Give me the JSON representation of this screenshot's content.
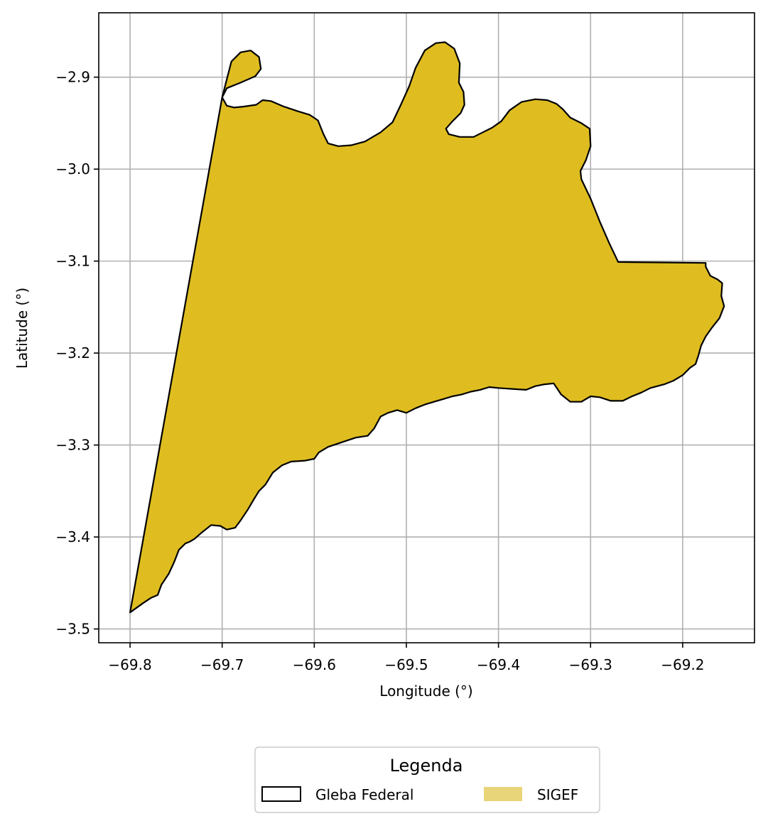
{
  "map": {
    "xlabel": "Longitude (°)",
    "ylabel": "Latitude (°)",
    "xlim": [
      -69.834,
      -69.122
    ],
    "ylim": [
      -3.515,
      -2.83
    ],
    "x_ticks": [
      -69.8,
      -69.7,
      -69.6,
      -69.5,
      -69.4,
      -69.3,
      -69.2
    ],
    "y_ticks": [
      -2.9,
      -3.0,
      -3.1,
      -3.2,
      -3.3,
      -3.4,
      -3.5
    ],
    "x_tick_labels": [
      "−69.8",
      "−69.7",
      "−69.6",
      "−69.5",
      "−69.4",
      "−69.3",
      "−69.2"
    ],
    "y_tick_labels": [
      "−2.9",
      "−3.0",
      "−3.1",
      "−3.2",
      "−3.3",
      "−3.4",
      "−3.5"
    ],
    "grid": true,
    "colors": {
      "sigef_fill": "#dfbd20",
      "gleba_edge": "#000000",
      "grid": "#b0b0b0",
      "legend_sigef_patch": "#e8d57a"
    },
    "polygon": [
      [
        -69.8,
        -3.482
      ],
      [
        -69.786,
        -3.472
      ],
      [
        -69.777,
        -3.466
      ],
      [
        -69.77,
        -3.463
      ],
      [
        -69.766,
        -3.452
      ],
      [
        -69.758,
        -3.44
      ],
      [
        -69.752,
        -3.427
      ],
      [
        -69.747,
        -3.414
      ],
      [
        -69.74,
        -3.407
      ],
      [
        -69.735,
        -3.405
      ],
      [
        -69.73,
        -3.402
      ],
      [
        -69.722,
        -3.395
      ],
      [
        -69.712,
        -3.387
      ],
      [
        -69.702,
        -3.388
      ],
      [
        -69.695,
        -3.392
      ],
      [
        -69.686,
        -3.39
      ],
      [
        -69.68,
        -3.382
      ],
      [
        -69.672,
        -3.37
      ],
      [
        -69.665,
        -3.358
      ],
      [
        -69.66,
        -3.35
      ],
      [
        -69.653,
        -3.343
      ],
      [
        -69.645,
        -3.33
      ],
      [
        -69.635,
        -3.322
      ],
      [
        -69.625,
        -3.318
      ],
      [
        -69.61,
        -3.317
      ],
      [
        -69.6,
        -3.315
      ],
      [
        -69.595,
        -3.308
      ],
      [
        -69.585,
        -3.302
      ],
      [
        -69.57,
        -3.297
      ],
      [
        -69.555,
        -3.292
      ],
      [
        -69.542,
        -3.29
      ],
      [
        -69.535,
        -3.282
      ],
      [
        -69.528,
        -3.269
      ],
      [
        -69.52,
        -3.265
      ],
      [
        -69.51,
        -3.262
      ],
      [
        -69.5,
        -3.265
      ],
      [
        -69.49,
        -3.26
      ],
      [
        -69.48,
        -3.256
      ],
      [
        -69.47,
        -3.253
      ],
      [
        -69.46,
        -3.25
      ],
      [
        -69.45,
        -3.247
      ],
      [
        -69.44,
        -3.245
      ],
      [
        -69.43,
        -3.242
      ],
      [
        -69.42,
        -3.24
      ],
      [
        -69.41,
        -3.237
      ],
      [
        -69.4,
        -3.238
      ],
      [
        -69.385,
        -3.239
      ],
      [
        -69.37,
        -3.24
      ],
      [
        -69.36,
        -3.236
      ],
      [
        -69.35,
        -3.234
      ],
      [
        -69.34,
        -3.233
      ],
      [
        -69.332,
        -3.245
      ],
      [
        -69.322,
        -3.253
      ],
      [
        -69.31,
        -3.253
      ],
      [
        -69.3,
        -3.247
      ],
      [
        -69.29,
        -3.248
      ],
      [
        -69.278,
        -3.252
      ],
      [
        -69.265,
        -3.252
      ],
      [
        -69.255,
        -3.247
      ],
      [
        -69.245,
        -3.243
      ],
      [
        -69.235,
        -3.238
      ],
      [
        -69.22,
        -3.234
      ],
      [
        -69.21,
        -3.23
      ],
      [
        -69.2,
        -3.224
      ],
      [
        -69.192,
        -3.216
      ],
      [
        -69.186,
        -3.212
      ],
      [
        -69.183,
        -3.203
      ],
      [
        -69.18,
        -3.192
      ],
      [
        -69.175,
        -3.182
      ],
      [
        -69.168,
        -3.172
      ],
      [
        -69.16,
        -3.162
      ],
      [
        -69.155,
        -3.149
      ],
      [
        -69.158,
        -3.138
      ],
      [
        -69.157,
        -3.124
      ],
      [
        -69.162,
        -3.12
      ],
      [
        -69.17,
        -3.116
      ],
      [
        -69.175,
        -3.106
      ],
      [
        -69.175,
        -3.102
      ],
      [
        -69.27,
        -3.101
      ],
      [
        -69.28,
        -3.08
      ],
      [
        -69.29,
        -3.057
      ],
      [
        -69.3,
        -3.032
      ],
      [
        -69.31,
        -3.011
      ],
      [
        -69.311,
        -3.002
      ],
      [
        -69.305,
        -2.99
      ],
      [
        -69.3,
        -2.975
      ],
      [
        -69.301,
        -2.956
      ],
      [
        -69.31,
        -2.95
      ],
      [
        -69.322,
        -2.944
      ],
      [
        -69.33,
        -2.935
      ],
      [
        -69.337,
        -2.929
      ],
      [
        -69.347,
        -2.925
      ],
      [
        -69.36,
        -2.924
      ],
      [
        -69.375,
        -2.927
      ],
      [
        -69.388,
        -2.936
      ],
      [
        -69.397,
        -2.948
      ],
      [
        -69.407,
        -2.955
      ],
      [
        -69.417,
        -2.96
      ],
      [
        -69.427,
        -2.965
      ],
      [
        -69.442,
        -2.965
      ],
      [
        -69.454,
        -2.962
      ],
      [
        -69.457,
        -2.956
      ],
      [
        -69.45,
        -2.948
      ],
      [
        -69.441,
        -2.939
      ],
      [
        -69.437,
        -2.93
      ],
      [
        -69.438,
        -2.916
      ],
      [
        -69.443,
        -2.906
      ],
      [
        -69.442,
        -2.885
      ],
      [
        -69.448,
        -2.869
      ],
      [
        -69.458,
        -2.862
      ],
      [
        -69.468,
        -2.863
      ],
      [
        -69.48,
        -2.871
      ],
      [
        -69.49,
        -2.89
      ],
      [
        -69.497,
        -2.91
      ],
      [
        -69.506,
        -2.93
      ],
      [
        -69.515,
        -2.949
      ],
      [
        -69.528,
        -2.96
      ],
      [
        -69.545,
        -2.97
      ],
      [
        -69.56,
        -2.974
      ],
      [
        -69.574,
        -2.975
      ],
      [
        -69.585,
        -2.972
      ],
      [
        -69.59,
        -2.962
      ],
      [
        -69.596,
        -2.947
      ],
      [
        -69.605,
        -2.941
      ],
      [
        -69.618,
        -2.937
      ],
      [
        -69.633,
        -2.932
      ],
      [
        -69.647,
        -2.926
      ],
      [
        -69.656,
        -2.925
      ],
      [
        -69.663,
        -2.93
      ],
      [
        -69.677,
        -2.932
      ],
      [
        -69.687,
        -2.933
      ],
      [
        -69.695,
        -2.931
      ],
      [
        -69.7,
        -2.922
      ],
      [
        -69.695,
        -2.912
      ],
      [
        -69.68,
        -2.906
      ],
      [
        -69.664,
        -2.899
      ],
      [
        -69.658,
        -2.891
      ],
      [
        -69.66,
        -2.878
      ],
      [
        -69.669,
        -2.871
      ],
      [
        -69.68,
        -2.873
      ],
      [
        -69.69,
        -2.883
      ],
      [
        -69.7,
        -2.922
      ],
      [
        -69.8,
        -3.482
      ]
    ]
  },
  "legend": {
    "title": "Legenda",
    "items": [
      {
        "label": "Gleba Federal"
      },
      {
        "label": "SIGEF"
      }
    ]
  }
}
